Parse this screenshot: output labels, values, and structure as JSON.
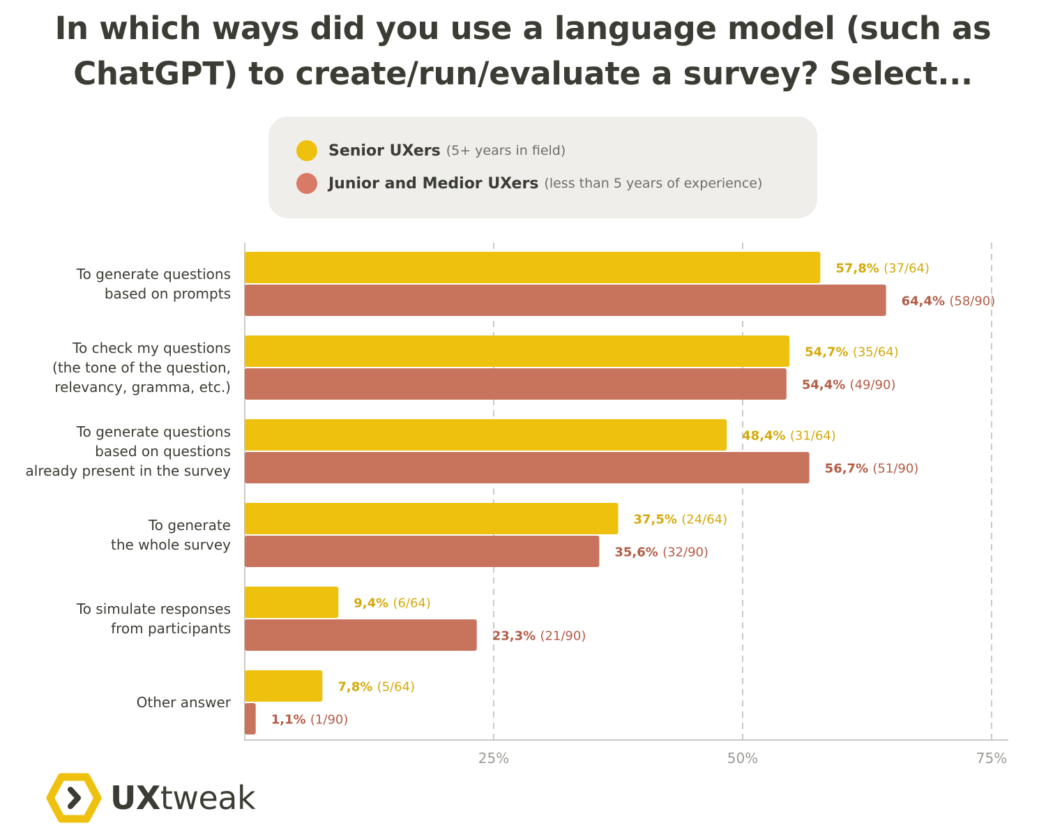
{
  "title_lines": [
    "In which ways did you use a language model (such as",
    "ChatGPT) to create/run/evaluate a survey? Select..."
  ],
  "colors": {
    "senior": "#eec10f",
    "junior": "#c8735c",
    "senior_text": "#d3aa0c",
    "junior_text": "#b45c46",
    "grid": "#c9c9c6",
    "axis": "#c9c9c6"
  },
  "legend": [
    {
      "name": "Senior UXers",
      "note": "(5+ years in field)",
      "color": "#eec10f"
    },
    {
      "name": "Junior and Medior UXers",
      "note": "(less than 5 years of experience)",
      "color": "#d97a66"
    }
  ],
  "chart_data": {
    "type": "bar",
    "orientation": "horizontal",
    "categories": [
      [
        "To generate questions",
        "based on prompts"
      ],
      [
        "To check my questions",
        "(the tone of the question,",
        "relevancy, gramma, etc.)"
      ],
      [
        "To generate questions",
        "based on questions",
        "already present in the survey"
      ],
      [
        "To generate",
        "the whole survey"
      ],
      [
        "To simulate responses",
        "from participants"
      ],
      [
        "Other answer"
      ]
    ],
    "series": [
      {
        "name": "Senior UXers",
        "values": [
          57.8,
          54.7,
          48.4,
          37.5,
          9.4,
          7.8
        ],
        "labels": [
          "57,8%",
          "54,7%",
          "48,4%",
          "37,5%",
          "9,4%",
          "7,8%"
        ],
        "counts": [
          "(37/64)",
          "(35/64)",
          "(31/64)",
          "(24/64)",
          "(6/64)",
          "(5/64)"
        ]
      },
      {
        "name": "Junior and Medior UXers",
        "values": [
          64.4,
          54.4,
          56.7,
          35.6,
          23.3,
          1.1
        ],
        "labels": [
          "64,4%",
          "54,4%",
          "56,7%",
          "35,6%",
          "23,3%",
          "1,1%"
        ],
        "counts": [
          "(58/90)",
          "(49/90)",
          "(51/90)",
          "(32/90)",
          "(21/90)",
          "(1/90)"
        ]
      }
    ],
    "xlim": [
      0,
      76.8
    ],
    "xticks": [
      25,
      50,
      75
    ],
    "xtick_labels": [
      "25%",
      "50%",
      "75%"
    ],
    "grid": "dashed vertical",
    "legend_position": "top"
  },
  "logo": {
    "bold": "UX",
    "regular": "tweak"
  }
}
